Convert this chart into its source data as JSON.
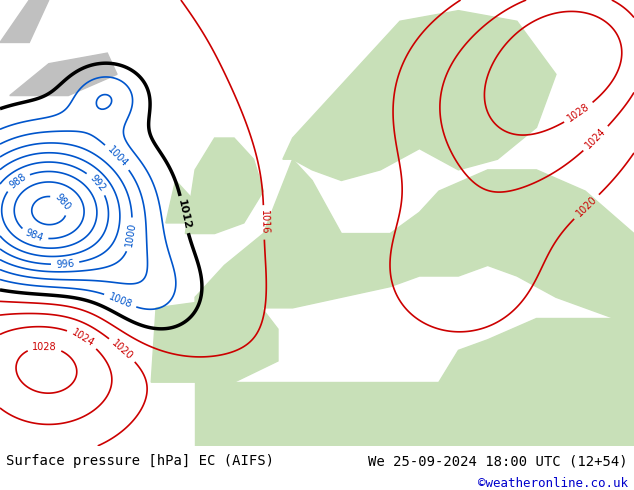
{
  "title_left": "Surface pressure [hPa] EC (AIFS)",
  "title_right": "We 25-09-2024 18:00 UTC (12+54)",
  "credit": "©weatheronline.co.uk",
  "sea_color": "#c8dce8",
  "land_color": "#b8c8b0",
  "gray_land_color": "#c0c0c0",
  "green_land_color": "#c8e0b8",
  "bottom_bar_color": "#ffffff",
  "label_color_left": "#000000",
  "label_color_right": "#000000",
  "credit_color": "#0000cc",
  "font_size_title": 10,
  "font_size_credit": 9,
  "blue_color": "#0055cc",
  "red_color": "#cc0000",
  "black_color": "#000000"
}
